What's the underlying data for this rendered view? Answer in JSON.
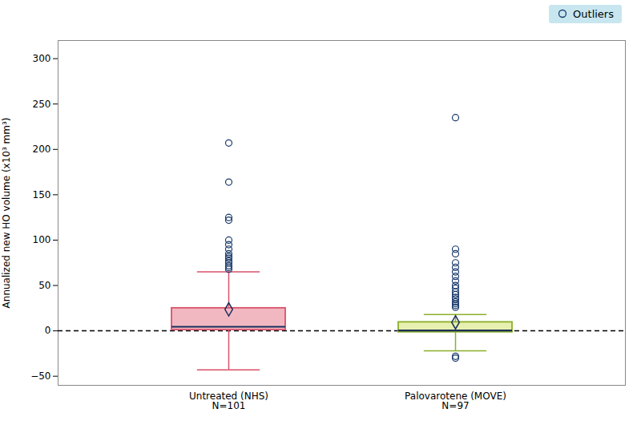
{
  "chart_data": {
    "type": "box",
    "ylabel": "Annualized new HO volume (x10³ mm³)",
    "ylim": [
      -60,
      320
    ],
    "yticks": [
      -50,
      0,
      50,
      100,
      150,
      200,
      250,
      300
    ],
    "grid": false,
    "legend": "upper right",
    "categories": [
      "Untreated (NHS)\nN=101",
      "Palovarotene (MOVE)\nN=97"
    ],
    "reference_line_y": 0,
    "outlier_label": "Outliers",
    "outlier_color": "#1a3a6b",
    "legend_color": "#C8E6F0",
    "boxes": [
      {
        "q1": 1.0,
        "median": 4.5,
        "q3": 25.0,
        "mean": 23.7,
        "whisker_low": -43.0,
        "whisker_high": 65.0,
        "outliers": [
          68,
          70,
          72,
          75,
          77,
          80,
          82,
          85,
          90,
          95,
          100,
          122,
          125,
          164,
          207
        ],
        "color": "#D9526A",
        "fill": "#F2B8C2",
        "median_color": "#1a2e5a",
        "mean_color": "#1a2e5a"
      },
      {
        "q1": -1.5,
        "median": 0.5,
        "q3": 9.5,
        "mean": 9.4,
        "whisker_low": -22.0,
        "whisker_high": 18.0,
        "outliers": [
          235,
          90,
          85,
          75,
          70,
          65,
          60,
          55,
          50,
          47,
          43,
          40,
          37,
          35,
          32,
          30,
          28,
          26,
          -28,
          -30
        ],
        "color": "#8BAF2A",
        "fill": "#E8F0B0",
        "median_color": "#1a2e5a",
        "mean_color": "#1a2e5a"
      }
    ]
  }
}
